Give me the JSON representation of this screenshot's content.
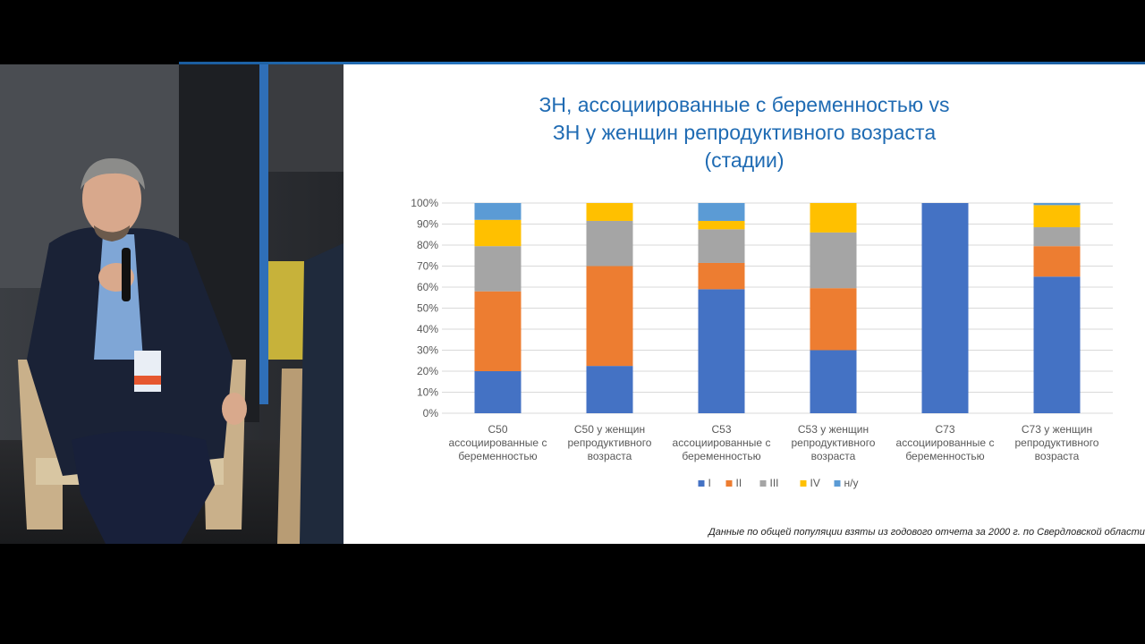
{
  "slide": {
    "title_lines": [
      "ЗН, ассоциированные с беременностью vs",
      "ЗН у женщин репродуктивного возраста",
      "(стадии)"
    ],
    "footnote": "Данные по общей популяции взяты из годового отчета за 2000 г. по Свердловской области"
  },
  "chart_data": {
    "type": "bar",
    "stacked": true,
    "percent": true,
    "categories": [
      [
        "С50",
        "ассоциированные с",
        "беременностью"
      ],
      [
        "С50 у женщин",
        "репродуктивного",
        "возраста"
      ],
      [
        "С53",
        "ассоциированные с",
        "беременностью"
      ],
      [
        "С53 у женщин",
        "репродуктивного",
        "возраста"
      ],
      [
        "С73",
        "ассоциированные с",
        "беременностью"
      ],
      [
        "С73 у женщин",
        "репродуктивного",
        "возраста"
      ]
    ],
    "series": [
      {
        "name": "I",
        "color": "#4472c4",
        "values": [
          20,
          22.5,
          59,
          30,
          100,
          65
        ]
      },
      {
        "name": "II",
        "color": "#ed7d31",
        "values": [
          38,
          47.5,
          12.5,
          29.5,
          0,
          14.5
        ]
      },
      {
        "name": "III",
        "color": "#a5a5a5",
        "values": [
          21.5,
          21.5,
          16,
          26.5,
          0,
          9
        ]
      },
      {
        "name": "IV",
        "color": "#ffc000",
        "values": [
          12.5,
          8.5,
          4,
          14,
          0,
          10.5
        ]
      },
      {
        "name": "н/у",
        "color": "#5b9bd5",
        "values": [
          8,
          0,
          8.5,
          0,
          0,
          1
        ]
      }
    ],
    "y_ticks": [
      "0%",
      "10%",
      "20%",
      "30%",
      "40%",
      "50%",
      "60%",
      "70%",
      "80%",
      "90%",
      "100%"
    ],
    "ylim": [
      0,
      100
    ],
    "grid": true,
    "legend_position": "bottom"
  }
}
